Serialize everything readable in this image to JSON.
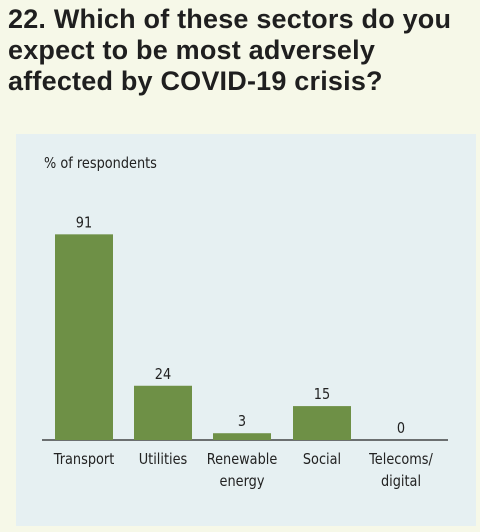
{
  "title": "22. Which of these sectors do you expect to be most adversely affected by COVID-19 crisis?",
  "colors": {
    "bar": "#6e9046",
    "background": "#f6f8e8",
    "panel": "#e6f0f2",
    "axis": "#222222"
  },
  "chart_data": {
    "type": "bar",
    "ylabel": "% of respondents",
    "categories": [
      "Transport",
      "Utilities",
      "Renewable\nenergy",
      "Social",
      "Telecoms/\ndigital"
    ],
    "values": [
      91,
      24,
      3,
      15,
      0
    ],
    "ylim": [
      0,
      100
    ],
    "grid": false,
    "legend": "none"
  }
}
